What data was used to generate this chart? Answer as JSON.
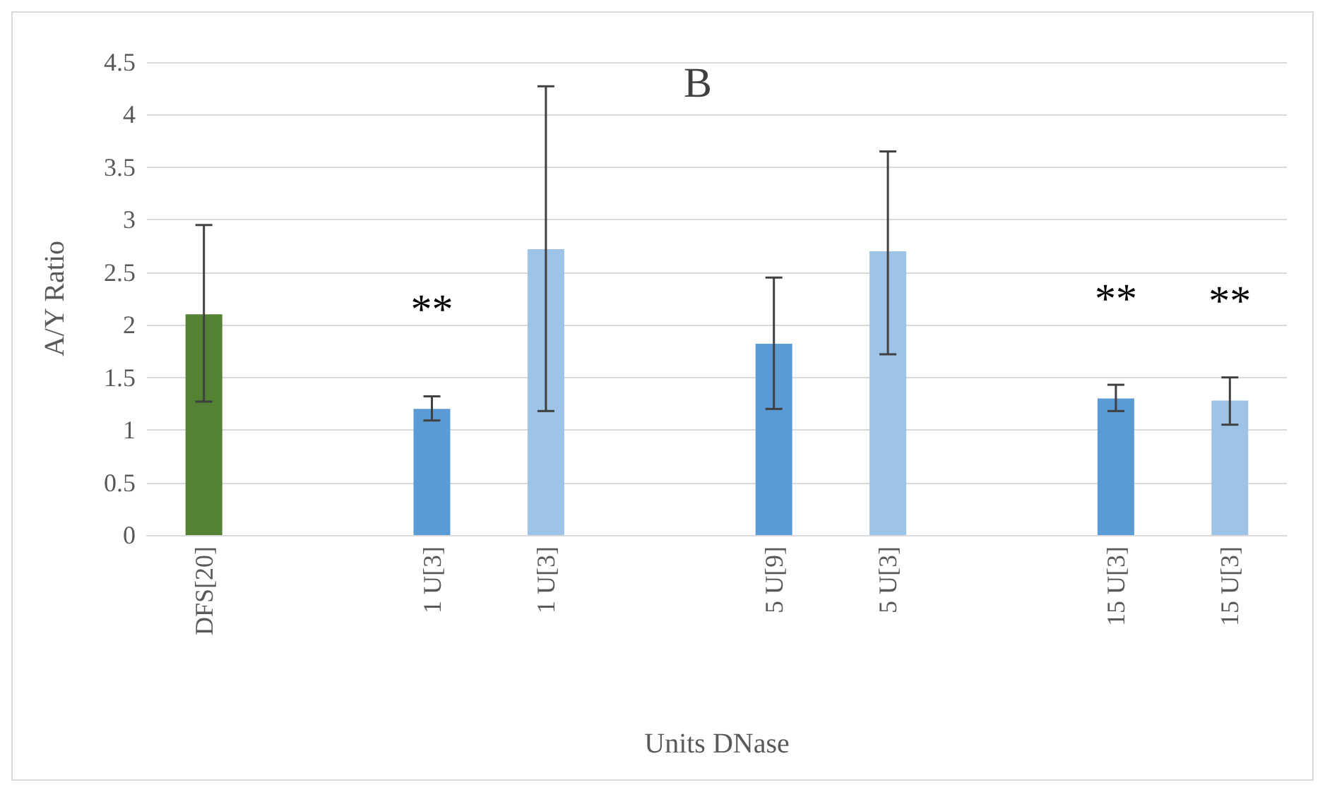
{
  "chart_data": {
    "type": "bar",
    "title": "B",
    "xlabel": "Units DNase",
    "ylabel": "A/Y Ratio",
    "categories": [
      "DFS[20]",
      null,
      "1 U[3]",
      "1 U[3]",
      null,
      "5 U[9]",
      "5 U[3]",
      null,
      "15 U[3]",
      "15 U[3]"
    ],
    "values": [
      2.1,
      null,
      1.2,
      2.72,
      null,
      1.82,
      2.7,
      null,
      1.3,
      1.28
    ],
    "colors": [
      "#548235",
      "#5b9bd5",
      "#5b9bd5",
      "#9dc3e6",
      "#5b9bd5",
      "#5b9bd5",
      "#9dc3e6",
      "#5b9bd5",
      "#5b9bd5",
      "#9dc3e6"
    ],
    "errors": [
      [
        1.27,
        2.95
      ],
      null,
      [
        1.09,
        1.32
      ],
      [
        1.18,
        4.27
      ],
      null,
      [
        1.2,
        2.45
      ],
      [
        1.72,
        3.65
      ],
      null,
      [
        1.18,
        1.43
      ],
      [
        1.05,
        1.5
      ]
    ],
    "value_labels": [
      null,
      null,
      "**",
      null,
      null,
      null,
      null,
      null,
      "**",
      "**"
    ],
    "ylim": [
      0,
      4.5
    ],
    "yticks": [
      0,
      0.5,
      1,
      1.5,
      2,
      2.5,
      3,
      3.5,
      4,
      4.5
    ],
    "grid": "y"
  }
}
